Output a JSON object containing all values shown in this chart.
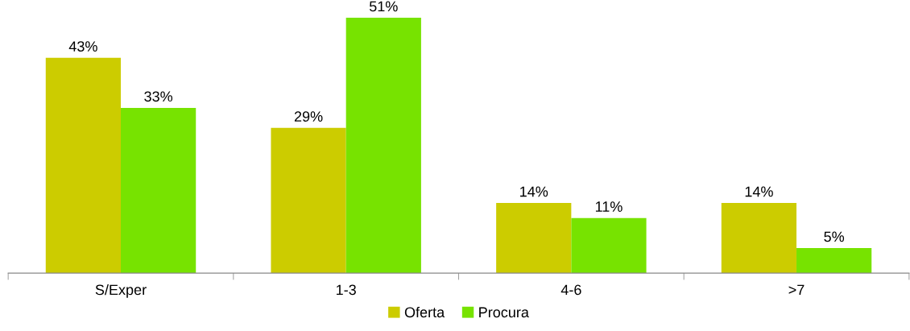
{
  "chart_data": {
    "type": "bar",
    "categories": [
      "S/Exper",
      "1-3",
      "4-6",
      ">7"
    ],
    "series": [
      {
        "name": "Oferta",
        "color": "#cccc00",
        "values": [
          43,
          29,
          14,
          14
        ],
        "value_labels": [
          "43%",
          "29%",
          "14%",
          "14%"
        ]
      },
      {
        "name": "Procura",
        "color": "#77e300",
        "values": [
          33,
          51,
          11,
          5
        ],
        "value_labels": [
          "33%",
          "51%",
          "11%",
          "5%"
        ]
      }
    ],
    "legend": "bottom",
    "grid": false,
    "tick_labels": "x"
  }
}
